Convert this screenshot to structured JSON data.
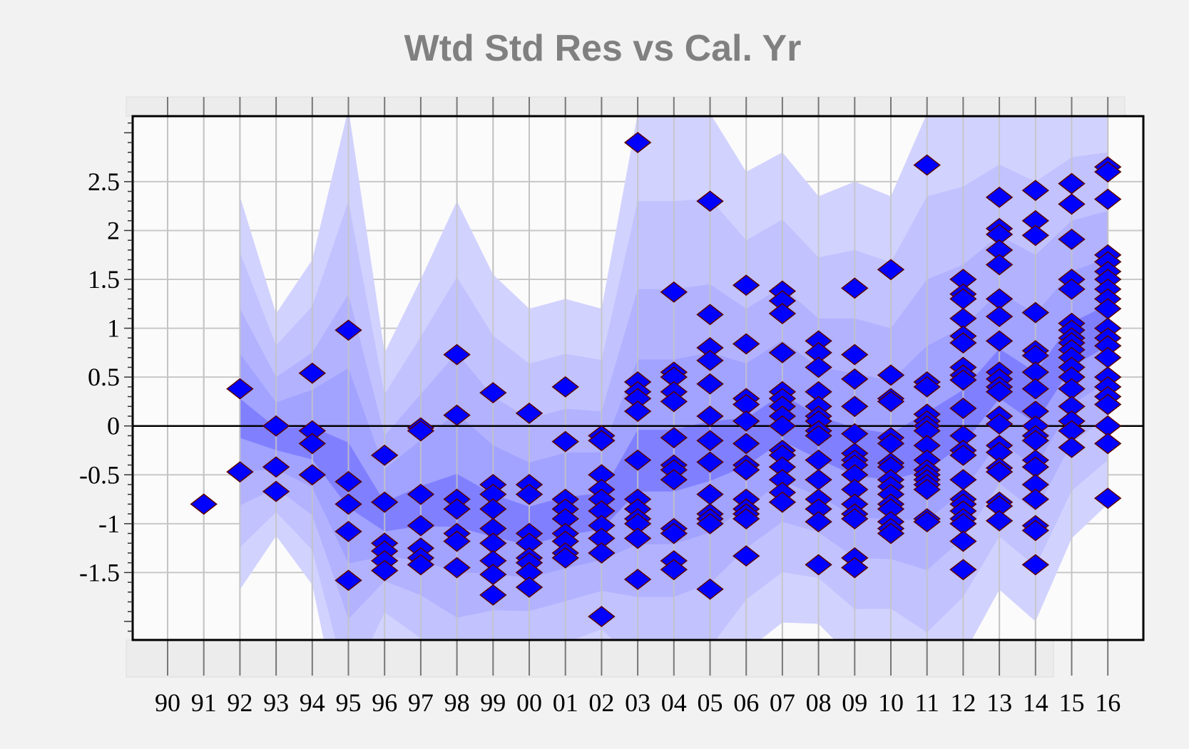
{
  "chart_data": {
    "type": "scatter",
    "title": "Wtd Std Res vs Cal. Yr",
    "xlabel": "",
    "ylabel": "",
    "categories": [
      "90",
      "91",
      "92",
      "93",
      "94",
      "95",
      "96",
      "97",
      "98",
      "99",
      "00",
      "01",
      "02",
      "03",
      "04",
      "05",
      "06",
      "07",
      "08",
      "09",
      "10",
      "11",
      "12",
      "13",
      "14",
      "15",
      "16"
    ],
    "ylim": [
      -2.19,
      3.17
    ],
    "yticks": [
      -1.5,
      -1,
      -0.5,
      0,
      0.5,
      1,
      1.5,
      2,
      2.5
    ],
    "ytick_labels": [
      "-1.5",
      "-1",
      "-0.5",
      "0",
      "0.5",
      "1",
      "1.5",
      "2",
      "2.5"
    ],
    "grid": true,
    "reference_line": 0,
    "marker": "diamond",
    "colors": {
      "marker_fill": "#0000ff",
      "marker_edge": "#5a0000",
      "title": "#808080",
      "bands": [
        "#d2d2ff",
        "#c2c2ff",
        "#b2b2ff",
        "#a2a2ff",
        "#8080ff"
      ]
    },
    "points": {
      "91": [
        -0.8
      ],
      "92": [
        0.38,
        -0.47
      ],
      "93": [
        0,
        -0.42,
        -0.67
      ],
      "94": [
        0.54,
        -0.05,
        -0.18,
        -0.5
      ],
      "95": [
        0.98,
        -0.57,
        -0.8,
        -1.08,
        -1.58
      ],
      "96": [
        -0.3,
        -0.78,
        -1.2,
        -1.28,
        -1.38,
        -1.48
      ],
      "97": [
        -0.02,
        -0.05,
        -0.7,
        -1.02,
        -1.25,
        -1.35,
        -1.42
      ],
      "98": [
        0.73,
        0.11,
        -0.75,
        -0.85,
        -1.1,
        -1.18,
        -1.45
      ],
      "99": [
        0.34,
        -0.6,
        -0.7,
        -0.85,
        -1.05,
        -1.2,
        -1.38,
        -1.52,
        -1.73
      ],
      "00": [
        0.13,
        -0.6,
        -0.7,
        -1.1,
        -1.2,
        -1.35,
        -1.4,
        -1.5,
        -1.65
      ],
      "01": [
        0.4,
        -0.16,
        -0.75,
        -0.85,
        -0.95,
        -1.1,
        -1.18,
        -1.3,
        -1.35
      ],
      "02": [
        -0.1,
        -0.15,
        -0.5,
        -0.65,
        -0.75,
        -0.87,
        -1.02,
        -1.15,
        -1.3,
        -1.95
      ],
      "03": [
        2.9,
        0.45,
        0.35,
        0.28,
        0.15,
        -0.35,
        -0.75,
        -0.85,
        -0.95,
        -1.0,
        -1.15,
        -1.57
      ],
      "04": [
        1.37,
        0.55,
        0.5,
        0.35,
        0.25,
        -0.12,
        -0.4,
        -0.45,
        -0.55,
        -1.05,
        -1.1,
        -1.38,
        -1.47
      ],
      "05": [
        2.3,
        1.14,
        0.8,
        0.67,
        0.43,
        0.1,
        -0.15,
        -0.37,
        -0.7,
        -0.9,
        -0.95,
        -1.0,
        -1.67
      ],
      "06": [
        1.44,
        0.84,
        0.28,
        0.22,
        0.05,
        -0.18,
        -0.4,
        -0.45,
        -0.75,
        -0.85,
        -0.9,
        -0.95,
        -1.33
      ],
      "07": [
        1.38,
        1.28,
        1.15,
        0.75,
        0.35,
        0.28,
        0.2,
        0.1,
        0,
        -0.25,
        -0.3,
        -0.42,
        -0.55,
        -0.68,
        -0.78
      ],
      "08": [
        0.87,
        0.75,
        0.6,
        0.35,
        0.2,
        0.1,
        0.05,
        -0.05,
        -0.1,
        -0.35,
        -0.55,
        -0.75,
        -0.85,
        -0.98,
        -1.42
      ],
      "09": [
        1.41,
        0.73,
        0.48,
        0.2,
        -0.08,
        -0.28,
        -0.35,
        -0.4,
        -0.5,
        -0.65,
        -0.8,
        -0.9,
        -0.95,
        -1.35,
        -1.45
      ],
      "10": [
        1.6,
        0.52,
        0.28,
        0.25,
        -0.12,
        -0.18,
        -0.38,
        -0.42,
        -0.55,
        -0.62,
        -0.7,
        -0.8,
        -0.85,
        -0.98,
        -1.05,
        -1.1
      ],
      "11": [
        2.67,
        0.45,
        0.4,
        0.12,
        0.05,
        0,
        -0.05,
        -0.2,
        -0.35,
        -0.45,
        -0.5,
        -0.55,
        -0.6,
        -0.65,
        -0.95,
        -0.98
      ],
      "12": [
        1.5,
        1.35,
        1.3,
        1.1,
        0.92,
        0.85,
        0.6,
        0.52,
        0.47,
        0.18,
        -0.1,
        -0.25,
        -0.3,
        -0.55,
        -0.75,
        -0.8,
        -0.87,
        -0.95,
        -1.0,
        -1.18,
        -1.47
      ],
      "13": [
        2.34,
        2.02,
        1.96,
        1.8,
        1.65,
        1.3,
        1.12,
        0.87,
        0.55,
        0.48,
        0.4,
        0.35,
        0.1,
        0.02,
        -0.2,
        -0.27,
        -0.43,
        -0.47,
        -0.78,
        -0.82,
        -0.97
      ],
      "14": [
        2.41,
        2.1,
        1.95,
        1.16,
        0.77,
        0.72,
        0.55,
        0.38,
        0.15,
        0,
        -0.1,
        -0.15,
        -0.35,
        -0.42,
        -0.6,
        -0.75,
        -1.02,
        -1.07,
        -1.42
      ],
      "15": [
        2.48,
        2.27,
        1.91,
        1.5,
        1.4,
        1.05,
        0.98,
        0.9,
        0.85,
        0.78,
        0.7,
        0.6,
        0.5,
        0.38,
        0.2,
        0.05,
        -0.05,
        -0.22
      ],
      "16": [
        2.65,
        2.6,
        2.32,
        1.75,
        1.68,
        1.58,
        1.5,
        1.4,
        1.3,
        1.2,
        1.0,
        0.9,
        0.82,
        0.7,
        0.5,
        0.4,
        0.3,
        0.22,
        0,
        -0.18,
        -0.74
      ]
    },
    "bands": {
      "years": [
        "92",
        "93",
        "94",
        "95",
        "96",
        "97",
        "98",
        "99",
        "00",
        "01",
        "02",
        "03",
        "04",
        "05",
        "06",
        "07",
        "08",
        "09",
        "10",
        "11",
        "12",
        "13",
        "14",
        "15",
        "16"
      ],
      "center": [
        0.05,
        -0.15,
        -0.2,
        -0.55,
        -0.95,
        -0.85,
        -0.8,
        -0.95,
        -1.05,
        -0.95,
        -0.9,
        -0.4,
        -0.4,
        -0.3,
        -0.2,
        0.05,
        -0.15,
        -0.3,
        -0.35,
        -0.2,
        0.05,
        0.5,
        0.25,
        0.8,
        1.0
      ],
      "spread": [
        2.3,
        1.3,
        1.9,
        3.8,
        1.7,
        2.35,
        3.1,
        2.5,
        2.25,
        2.25,
        2.1,
        3.6,
        3.6,
        3.5,
        2.8,
        2.75,
        2.5,
        2.8,
        2.7,
        3.4,
        3.2,
        2.9,
        3.0,
        2.6,
        2.4
      ],
      "levels": [
        1.0,
        0.75,
        0.5,
        0.3,
        0.1
      ]
    }
  }
}
